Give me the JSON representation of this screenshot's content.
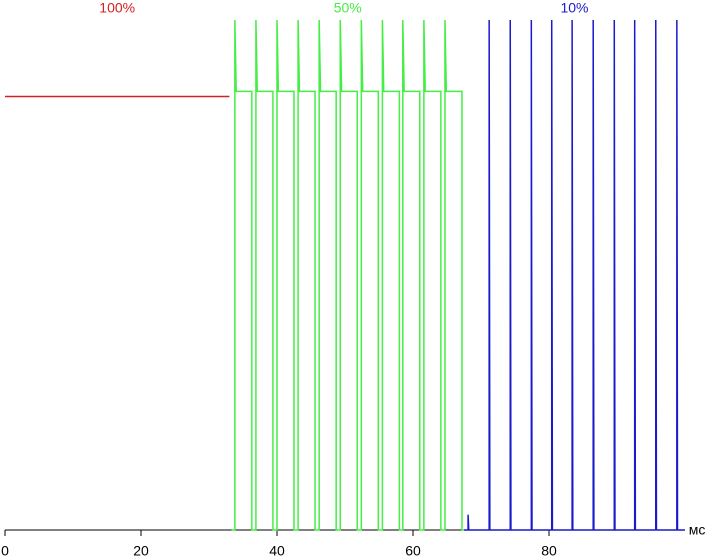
{
  "chart_data": {
    "type": "line",
    "x_label": "мс",
    "xlim": [
      0,
      100
    ],
    "xticks": [
      0,
      20,
      40,
      60,
      80
    ],
    "ylim": [
      0,
      100
    ],
    "series": [
      {
        "name": "100%",
        "color": "#d42020",
        "x": [
          0,
          33
        ],
        "values": [
          85,
          85
        ]
      },
      {
        "name": "50%",
        "color": "#44ee44",
        "x": [
          33.3,
          33.8,
          33.8,
          34.0,
          36.3,
          36.3,
          36.9,
          36.9,
          37.1,
          39.4,
          39.4,
          40.0,
          40.0,
          40.2,
          42.5,
          42.5,
          43.1,
          43.1,
          43.3,
          45.6,
          45.6,
          46.2,
          46.2,
          46.4,
          48.7,
          48.7,
          49.3,
          49.3,
          49.5,
          51.8,
          51.8,
          52.4,
          52.4,
          52.6,
          54.9,
          54.9,
          55.5,
          55.5,
          55.7,
          58.0,
          58.0,
          58.5,
          58.5,
          58.7,
          61.0,
          61.0,
          61.6,
          61.6,
          61.8,
          64.1,
          64.1,
          64.7,
          64.7,
          64.9,
          67.2,
          67.2,
          67.5
        ],
        "values": [
          0,
          0,
          100,
          86,
          86,
          0,
          0,
          100,
          86,
          86,
          0,
          0,
          100,
          86,
          86,
          0,
          0,
          100,
          86,
          86,
          0,
          0,
          100,
          86,
          86,
          0,
          0,
          100,
          86,
          86,
          0,
          0,
          100,
          86,
          86,
          0,
          0,
          100,
          86,
          86,
          0,
          0,
          100,
          86,
          86,
          0,
          0,
          100,
          86,
          86,
          0,
          0,
          100,
          86,
          86,
          0,
          0
        ]
      },
      {
        "name": "10%",
        "color": "#1a1acc",
        "x": [
          67.5,
          68.1,
          68.1,
          68.2,
          71.2,
          71.2,
          71.3,
          74.3,
          74.3,
          74.4,
          77.4,
          77.4,
          77.5,
          80.4,
          80.4,
          80.5,
          83.4,
          83.4,
          83.5,
          86.5,
          86.5,
          86.6,
          89.6,
          89.6,
          89.7,
          92.6,
          92.6,
          92.7,
          95.7,
          95.7,
          95.8,
          98.8,
          98.8,
          98.9,
          100
        ],
        "values": [
          0,
          0,
          3,
          0,
          0,
          100,
          0,
          0,
          100,
          0,
          0,
          100,
          0,
          0,
          100,
          0,
          0,
          100,
          0,
          0,
          100,
          0,
          0,
          100,
          0,
          0,
          100,
          0,
          0,
          100,
          0,
          0,
          100,
          0,
          0
        ]
      }
    ]
  }
}
